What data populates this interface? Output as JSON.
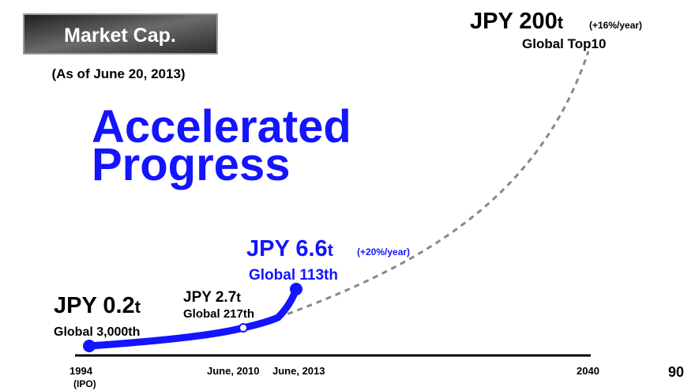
{
  "header": {
    "badge": "Market Cap.",
    "as_of": "(As of June 20, 2013)"
  },
  "headline": [
    "Accelerated",
    "Progress"
  ],
  "milestones": [
    {
      "amount": "JPY 0.2",
      "unit": "t",
      "rank": "Global 3,000th"
    },
    {
      "amount": "JPY 2.7",
      "unit": "t",
      "rank": "Global 217th"
    },
    {
      "amount": "JPY 6.6",
      "unit": "t",
      "growth": "(+20%/year)",
      "rank": "Global 113th"
    },
    {
      "amount": "JPY 200",
      "unit": "t",
      "growth": "(+16%/year)",
      "rank": "Global Top10"
    }
  ],
  "axis_labels": [
    {
      "label": "1994",
      "note": "(IPO)"
    },
    {
      "label": "June, 2010"
    },
    {
      "label": "June, 2013"
    },
    {
      "label": "2040"
    }
  ],
  "page_number": "90"
}
